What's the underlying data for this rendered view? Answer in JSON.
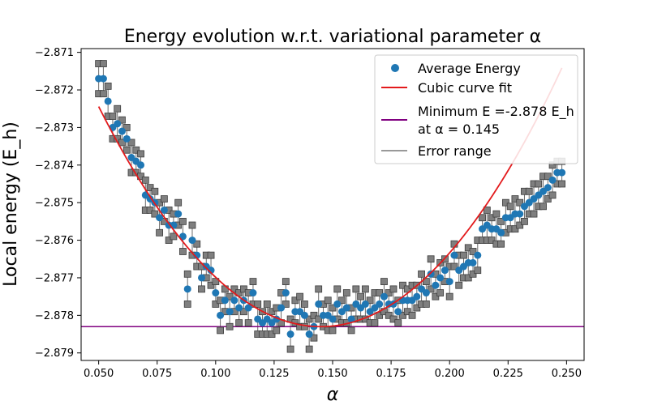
{
  "chart_data": {
    "type": "scatter",
    "title": "Energy evolution w.r.t. variational parameter α",
    "xlabel": "α",
    "ylabel": "Local energy (E_h)",
    "xlim": [
      0.0425,
      0.2575
    ],
    "ylim": [
      -2.8792,
      -2.8709
    ],
    "xticks": [
      0.05,
      0.075,
      0.1,
      0.125,
      0.15,
      0.175,
      0.2,
      0.225,
      0.25
    ],
    "xtick_labels": [
      "0.050",
      "0.075",
      "0.100",
      "0.125",
      "0.150",
      "0.175",
      "0.200",
      "0.225",
      "0.250"
    ],
    "yticks": [
      -2.871,
      -2.872,
      -2.873,
      -2.874,
      -2.875,
      -2.876,
      -2.877,
      -2.878,
      -2.879
    ],
    "ytick_labels": [
      "−2.871",
      "−2.872",
      "−2.873",
      "−2.874",
      "−2.875",
      "−2.876",
      "−2.877",
      "−2.878",
      "−2.879"
    ],
    "grid": false,
    "legend_position": "top-right",
    "legend": [
      {
        "label": "Average Energy",
        "kind": "marker",
        "color": "#1f77b4"
      },
      {
        "label": "Cubic curve fit",
        "kind": "line",
        "color": "#e31a1c"
      },
      {
        "label": "Minimum E =-2.878 E_h",
        "label2": "at α = 0.145",
        "kind": "line",
        "color": "#800080"
      },
      {
        "label": "Error range",
        "kind": "line",
        "color": "#999999"
      }
    ],
    "minimum_energy": -2.8783,
    "fit_coefficients": {
      "vertex_alpha": 0.145,
      "vertex_energy": -2.8783,
      "quadratic": 0.649
    },
    "series": [
      {
        "name": "Average Energy",
        "color": "#1f77b4",
        "x": [
          0.05,
          0.052,
          0.054,
          0.056,
          0.058,
          0.06,
          0.062,
          0.064,
          0.066,
          0.068,
          0.07,
          0.072,
          0.074,
          0.076,
          0.078,
          0.08,
          0.082,
          0.084,
          0.086,
          0.088,
          0.09,
          0.092,
          0.094,
          0.096,
          0.098,
          0.1,
          0.102,
          0.104,
          0.106,
          0.108,
          0.11,
          0.112,
          0.114,
          0.116,
          0.118,
          0.12,
          0.122,
          0.124,
          0.126,
          0.128,
          0.13,
          0.132,
          0.134,
          0.136,
          0.138,
          0.14,
          0.142,
          0.144,
          0.146,
          0.148,
          0.15,
          0.152,
          0.154,
          0.156,
          0.158,
          0.16,
          0.162,
          0.164,
          0.166,
          0.168,
          0.17,
          0.172,
          0.174,
          0.176,
          0.178,
          0.18,
          0.182,
          0.184,
          0.186,
          0.188,
          0.19,
          0.192,
          0.194,
          0.196,
          0.198,
          0.2,
          0.202,
          0.204,
          0.206,
          0.208,
          0.21,
          0.212,
          0.214,
          0.216,
          0.218,
          0.22,
          0.222,
          0.224,
          0.226,
          0.228,
          0.23,
          0.232,
          0.234,
          0.236,
          0.238,
          0.24,
          0.242,
          0.244,
          0.246,
          0.248
        ],
        "y": [
          -2.8717,
          -2.8717,
          -2.8723,
          -2.873,
          -2.8729,
          -2.8731,
          -2.8733,
          -2.8738,
          -2.8739,
          -2.874,
          -2.8748,
          -2.8749,
          -2.875,
          -2.8754,
          -2.8752,
          -2.8756,
          -2.8756,
          -2.8753,
          -2.8759,
          -2.8773,
          -2.876,
          -2.8764,
          -2.877,
          -2.8767,
          -2.8768,
          -2.8774,
          -2.878,
          -2.8776,
          -2.8779,
          -2.8776,
          -2.8778,
          -2.8776,
          -2.8778,
          -2.8774,
          -2.8781,
          -2.8782,
          -2.8781,
          -2.8782,
          -2.8781,
          -2.8778,
          -2.8774,
          -2.8785,
          -2.8779,
          -2.8779,
          -2.878,
          -2.8785,
          -2.8783,
          -2.8777,
          -2.878,
          -2.878,
          -2.8781,
          -2.8777,
          -2.8779,
          -2.8778,
          -2.8781,
          -2.8777,
          -2.8778,
          -2.8777,
          -2.8779,
          -2.8778,
          -2.8777,
          -2.8775,
          -2.8777,
          -2.8777,
          -2.8779,
          -2.8776,
          -2.8776,
          -2.8776,
          -2.8775,
          -2.8773,
          -2.8774,
          -2.8769,
          -2.8772,
          -2.877,
          -2.8768,
          -2.8771,
          -2.8764,
          -2.8768,
          -2.8767,
          -2.8766,
          -2.8766,
          -2.8764,
          -2.8757,
          -2.8756,
          -2.8757,
          -2.8757,
          -2.8758,
          -2.8754,
          -2.8754,
          -2.8753,
          -2.8753,
          -2.8751,
          -2.875,
          -2.8749,
          -2.8748,
          -2.8747,
          -2.8746,
          -2.8744,
          -2.8742,
          -2.8742
        ],
        "err": [
          0.0004,
          0.0004,
          0.0004,
          0.0003,
          0.0004,
          0.0003,
          0.0003,
          0.0004,
          0.0003,
          0.0003,
          0.0004,
          0.0003,
          0.0003,
          0.0004,
          0.0003,
          0.0004,
          0.0003,
          0.0003,
          0.0004,
          0.0004,
          0.0004,
          0.0003,
          0.0003,
          0.0003,
          0.0004,
          0.0003,
          0.0004,
          0.0003,
          0.0004,
          0.0003,
          0.0004,
          0.0003,
          0.0004,
          0.0003,
          0.0004,
          0.0003,
          0.0004,
          0.0003,
          0.0003,
          0.0004,
          0.0003,
          0.0004,
          0.0003,
          0.0004,
          0.0003,
          0.0004,
          0.0003,
          0.0004,
          0.0003,
          0.0004,
          0.0003,
          0.0004,
          0.0003,
          0.0004,
          0.0003,
          0.0004,
          0.0003,
          0.0004,
          0.0003,
          0.0004,
          0.0003,
          0.0004,
          0.0003,
          0.0004,
          0.0003,
          0.0004,
          0.0003,
          0.0004,
          0.0003,
          0.0004,
          0.0003,
          0.0004,
          0.0003,
          0.0004,
          0.0003,
          0.0004,
          0.0003,
          0.0004,
          0.0003,
          0.0004,
          0.0003,
          0.0004,
          0.0003,
          0.0004,
          0.0003,
          0.0004,
          0.0003,
          0.0004,
          0.0003,
          0.0004,
          0.0003,
          0.0004,
          0.0003,
          0.0004,
          0.0003,
          0.0004,
          0.0003,
          0.0004,
          0.0003,
          0.0003
        ]
      }
    ]
  }
}
